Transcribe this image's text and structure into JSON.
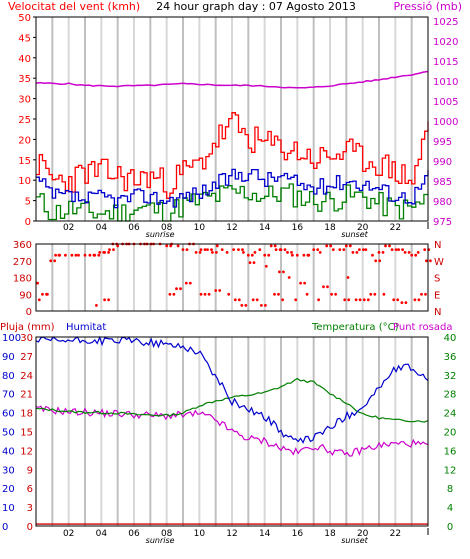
{
  "header": {
    "left_title": "Velocitat del vent (kmh)",
    "center_title": "24 hour graph day : 07 Agosto 2013",
    "right_title": "Pressió (mb)"
  },
  "hours_labels": [
    "02",
    "04",
    "06",
    "08",
    "10",
    "12",
    "14",
    "16",
    "18",
    "20",
    "22"
  ],
  "sunrise_label": "sunrise",
  "sunset_label": "sunset",
  "colors": {
    "border": "#000000",
    "grid": "#c8c8c8",
    "wind_avg": "#0000cc",
    "gust": "#ff0000",
    "direction": "#ff0000",
    "pressure": "#cc00cc",
    "temperature": "#008000",
    "dewpoint": "#cc00cc",
    "humidity": "#0000cc",
    "rain": "#cc0000",
    "calm_green": "#008000"
  },
  "chart_data": [
    {
      "type": "line",
      "id": "wind",
      "xlabel": "",
      "ylabel": "Velocitat del vent (kmh)",
      "ylabel2": "Pressió (mb)",
      "x_ticks": [
        "02",
        "04",
        "06",
        "08",
        "10",
        "12",
        "14",
        "16",
        "18",
        "20",
        "22"
      ],
      "yticks_left": [
        0,
        5,
        10,
        15,
        20,
        25,
        30,
        35,
        40,
        45,
        50
      ],
      "yticks_right": [
        975,
        980,
        985,
        990,
        995,
        1000,
        1005,
        1010,
        1015,
        1020,
        1025
      ],
      "ylim": [
        0,
        50
      ],
      "ylim2": [
        975,
        1026
      ],
      "x": [
        0,
        1,
        2,
        3,
        4,
        5,
        6,
        7,
        8,
        9,
        10,
        11,
        12,
        13,
        14,
        15,
        16,
        17,
        18,
        19,
        20,
        21,
        22,
        23,
        24
      ],
      "series": [
        {
          "name": "Velocitat del vent (kmh)",
          "color": "#0000cc",
          "values": [
            10,
            6,
            6,
            5,
            6,
            5,
            6,
            6,
            5,
            6,
            7,
            9,
            11,
            12,
            10,
            11,
            9,
            8,
            9,
            10,
            9,
            8,
            6,
            6,
            11
          ]
        },
        {
          "name": "",
          "color": "#ff0000",
          "values": [
            14,
            10,
            10,
            12,
            12,
            11,
            10,
            11,
            9,
            12,
            14,
            20,
            24,
            20,
            19,
            18,
            17,
            15,
            16,
            17,
            15,
            14,
            12,
            10,
            24
          ]
        },
        {
          "name": "",
          "color": "#008000",
          "values": [
            5,
            2,
            3,
            2,
            2,
            2,
            3,
            3,
            2,
            4,
            5,
            6,
            7,
            7,
            6,
            7,
            6,
            5,
            5,
            6,
            6,
            4,
            3,
            3,
            6
          ]
        },
        {
          "name": "Pressió (mb)",
          "color": "#cc00cc",
          "axis": "right",
          "values": [
            1009.5,
            1009.4,
            1009.3,
            1008.9,
            1008.8,
            1008.7,
            1008.8,
            1008.9,
            1009.1,
            1009.3,
            1009.2,
            1009.0,
            1008.9,
            1008.9,
            1008.7,
            1008.5,
            1008.2,
            1008.4,
            1008.8,
            1009.3,
            1009.8,
            1010.3,
            1011.0,
            1011.6,
            1012.4
          ]
        }
      ]
    },
    {
      "type": "scatter",
      "id": "direction",
      "yticks": [
        360,
        270,
        180,
        90,
        0
      ],
      "ylim": [
        0,
        360
      ],
      "compass": [
        "N",
        "W",
        "S",
        "E",
        "N"
      ],
      "points": [
        [
          0.1,
          150
        ],
        [
          0.2,
          60
        ],
        [
          0.4,
          90
        ],
        [
          0.7,
          90
        ],
        [
          0.9,
          270
        ],
        [
          1.2,
          300
        ],
        [
          1.4,
          300
        ],
        [
          1.8,
          300
        ],
        [
          2.2,
          300
        ],
        [
          2.6,
          300
        ],
        [
          3,
          300
        ],
        [
          3.3,
          300
        ],
        [
          3.6,
          300
        ],
        [
          3.9,
          315
        ],
        [
          4.2,
          315
        ],
        [
          4.5,
          330
        ],
        [
          4.7,
          360
        ],
        [
          5,
          350
        ],
        [
          5.3,
          360
        ],
        [
          5.7,
          360
        ],
        [
          6,
          360
        ],
        [
          6.4,
          360
        ],
        [
          6.8,
          360
        ],
        [
          7.2,
          360
        ],
        [
          7.6,
          360
        ],
        [
          8,
          350
        ],
        [
          8.3,
          360
        ],
        [
          8.7,
          350
        ],
        [
          9,
          330
        ],
        [
          9.4,
          360
        ],
        [
          9.8,
          315
        ],
        [
          10.1,
          330
        ],
        [
          10.5,
          330
        ],
        [
          10.8,
          315
        ],
        [
          11.1,
          350
        ],
        [
          11.4,
          330
        ],
        [
          11.7,
          315
        ],
        [
          12.1,
          330
        ],
        [
          12.4,
          330
        ],
        [
          12.7,
          315
        ],
        [
          13,
          300
        ],
        [
          13.4,
          315
        ],
        [
          13.7,
          330
        ],
        [
          14,
          300
        ],
        [
          14.4,
          350
        ],
        [
          14.7,
          330
        ],
        [
          15,
          330
        ],
        [
          15.4,
          315
        ],
        [
          15.7,
          300
        ],
        [
          16,
          300
        ],
        [
          16.4,
          300
        ],
        [
          16.7,
          300
        ],
        [
          17,
          330
        ],
        [
          17.4,
          315
        ],
        [
          17.8,
          350
        ],
        [
          18.2,
          330
        ],
        [
          18.6,
          330
        ],
        [
          19,
          350
        ],
        [
          19.4,
          315
        ],
        [
          19.8,
          330
        ],
        [
          20.2,
          330
        ],
        [
          20.6,
          300
        ],
        [
          21,
          315
        ],
        [
          21.4,
          350
        ],
        [
          21.8,
          330
        ],
        [
          22.2,
          330
        ],
        [
          22.6,
          315
        ],
        [
          23,
          300
        ],
        [
          23.4,
          315
        ],
        [
          23.8,
          330
        ],
        [
          3.7,
          30
        ],
        [
          4.2,
          60
        ],
        [
          8.2,
          90
        ],
        [
          8.6,
          120
        ],
        [
          9.2,
          150
        ],
        [
          10.1,
          90
        ],
        [
          10.6,
          90
        ],
        [
          11,
          110
        ],
        [
          11.8,
          90
        ],
        [
          12.2,
          60
        ],
        [
          12.6,
          30
        ],
        [
          13.3,
          60
        ],
        [
          13.8,
          30
        ],
        [
          14.6,
          90
        ],
        [
          15.1,
          60
        ],
        [
          15.9,
          60
        ],
        [
          16.6,
          90
        ],
        [
          17.3,
          60
        ],
        [
          18.1,
          90
        ],
        [
          18.9,
          60
        ],
        [
          19.6,
          60
        ],
        [
          20.1,
          60
        ],
        [
          20.5,
          90
        ],
        [
          21.3,
          90
        ],
        [
          21.9,
          60
        ],
        [
          22.4,
          45
        ],
        [
          23.2,
          60
        ],
        [
          23.6,
          90
        ],
        [
          13.1,
          260
        ],
        [
          14.1,
          240
        ],
        [
          14.9,
          210
        ],
        [
          15.5,
          180
        ],
        [
          16.2,
          150
        ],
        [
          17.6,
          130
        ],
        [
          19.1,
          180
        ],
        [
          20.8,
          270
        ],
        [
          23.9,
          270
        ]
      ]
    },
    {
      "type": "line",
      "id": "temp_hum",
      "ylabel_left": "Pluja (mm)",
      "ylabel_hum": "Humitat",
      "ylabel_right": "Temperatura (°C)",
      "ylabel_right2": "Punt rosada",
      "yticks_rain": [
        0,
        3,
        6,
        9,
        12,
        15,
        18,
        21,
        24,
        27,
        30
      ],
      "yticks_hum": [
        0,
        10,
        20,
        30,
        40,
        50,
        60,
        70,
        80,
        90,
        100
      ],
      "yticks_temp": [
        0,
        4,
        8,
        12,
        16,
        20,
        24,
        28,
        32,
        36,
        40
      ],
      "ylim_temp": [
        0,
        40
      ],
      "x": [
        0,
        1,
        2,
        3,
        4,
        5,
        6,
        7,
        8,
        9,
        10,
        11,
        12,
        13,
        14,
        15,
        16,
        17,
        18,
        19,
        20,
        21,
        22,
        23,
        24
      ],
      "series": [
        {
          "name": "Humitat",
          "color": "#0000cc",
          "axis": "hum",
          "values": [
            98,
            98,
            98,
            98,
            98,
            98,
            98,
            97,
            96,
            95,
            92,
            79,
            66,
            62,
            58,
            50,
            44,
            47,
            52,
            58,
            63,
            73,
            83,
            84,
            77
          ]
        },
        {
          "name": "Temperatura (°C)",
          "color": "#008000",
          "axis": "temp",
          "values": [
            24.8,
            24.6,
            24.2,
            24.1,
            24.0,
            23.9,
            23.6,
            23.5,
            23.4,
            23.9,
            25.5,
            26.5,
            27.2,
            27.7,
            28.2,
            29.5,
            31.0,
            30.4,
            28.0,
            26.1,
            23.6,
            22.9,
            22.4,
            22.3,
            22.2
          ]
        },
        {
          "name": "Punt rosada",
          "color": "#cc00cc",
          "axis": "temp",
          "values": [
            24.7,
            24.5,
            24.2,
            24.1,
            23.9,
            23.8,
            23.6,
            23.4,
            23.3,
            23.5,
            23.7,
            22.5,
            20.0,
            18.5,
            18.0,
            16.5,
            15.5,
            17.0,
            16.0,
            15.0,
            16.2,
            17.0,
            17.4,
            17.5,
            17.0
          ]
        },
        {
          "name": "Pluja (mm)",
          "color": "#cc0000",
          "axis": "rain",
          "values": [
            0.3,
            0.3,
            0.3,
            0.3,
            0.3,
            0.3,
            0.3,
            0.3,
            0.3,
            0.3,
            0.3,
            0.3,
            0.3,
            0.3,
            0.3,
            0.3,
            0.3,
            0.3,
            0.3,
            0.3,
            0.3,
            0.3,
            0.3,
            0.3,
            0.3
          ]
        }
      ]
    }
  ]
}
